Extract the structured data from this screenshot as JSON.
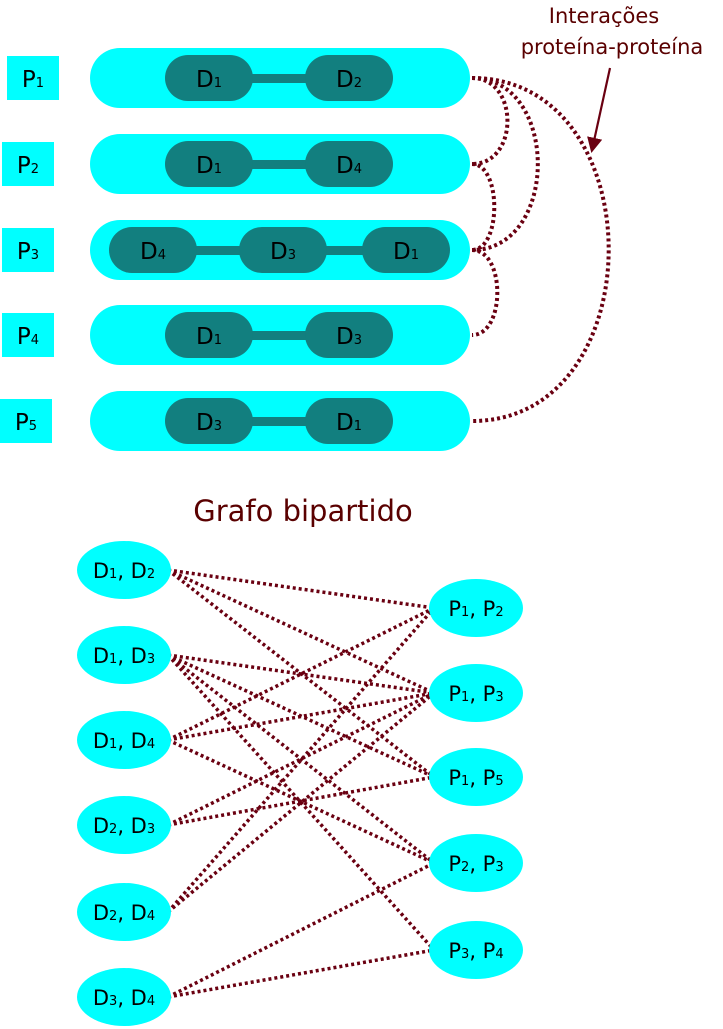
{
  "colors": {
    "protein_bar": "#00ffff",
    "domain": "#127f7f",
    "edge": "#6a0011",
    "text": "#000000",
    "annotation_text": "#5a0000"
  },
  "annotation": {
    "line1": "Interações",
    "line2": "proteína-proteína"
  },
  "proteins": [
    {
      "letter": "P",
      "index": "1",
      "domains": [
        {
          "letter": "D",
          "index": "1"
        },
        {
          "letter": "D",
          "index": "2"
        }
      ]
    },
    {
      "letter": "P",
      "index": "2",
      "domains": [
        {
          "letter": "D",
          "index": "1"
        },
        {
          "letter": "D",
          "index": "4"
        }
      ]
    },
    {
      "letter": "P",
      "index": "3",
      "domains": [
        {
          "letter": "D",
          "index": "4"
        },
        {
          "letter": "D",
          "index": "3"
        },
        {
          "letter": "D",
          "index": "1"
        }
      ]
    },
    {
      "letter": "P",
      "index": "4",
      "domains": [
        {
          "letter": "D",
          "index": "1"
        },
        {
          "letter": "D",
          "index": "3"
        }
      ]
    },
    {
      "letter": "P",
      "index": "5",
      "domains": [
        {
          "letter": "D",
          "index": "3"
        },
        {
          "letter": "D",
          "index": "1"
        }
      ]
    }
  ],
  "interactions": [
    {
      "from": 1,
      "to": 2
    },
    {
      "from": 1,
      "to": 3
    },
    {
      "from": 1,
      "to": 5
    },
    {
      "from": 2,
      "to": 3
    },
    {
      "from": 3,
      "to": 4
    }
  ],
  "bipartite": {
    "title": "Grafo bipartido",
    "domain_pairs": [
      {
        "a": {
          "letter": "D",
          "index": "1"
        },
        "sep": ", ",
        "b": {
          "letter": "D",
          "index": "2"
        }
      },
      {
        "a": {
          "letter": "D",
          "index": "1"
        },
        "sep": ", ",
        "b": {
          "letter": "D",
          "index": "3"
        }
      },
      {
        "a": {
          "letter": "D",
          "index": "1"
        },
        "sep": ", ",
        "b": {
          "letter": "D",
          "index": "4"
        }
      },
      {
        "a": {
          "letter": "D",
          "index": "2"
        },
        "sep": ", ",
        "b": {
          "letter": "D",
          "index": "3"
        }
      },
      {
        "a": {
          "letter": "D",
          "index": "2"
        },
        "sep": ", ",
        "b": {
          "letter": "D",
          "index": "4"
        }
      },
      {
        "a": {
          "letter": "D",
          "index": "3"
        },
        "sep": ", ",
        "b": {
          "letter": "D",
          "index": "4"
        }
      }
    ],
    "protein_pairs": [
      {
        "a": {
          "letter": "P",
          "index": "1"
        },
        "sep": ", ",
        "b": {
          "letter": "P",
          "index": "2"
        }
      },
      {
        "a": {
          "letter": "P",
          "index": "1"
        },
        "sep": ", ",
        "b": {
          "letter": "P",
          "index": "3"
        }
      },
      {
        "a": {
          "letter": "P",
          "index": "1"
        },
        "sep": ", ",
        "b": {
          "letter": "P",
          "index": "5"
        }
      },
      {
        "a": {
          "letter": "P",
          "index": "2"
        },
        "sep": ", ",
        "b": {
          "letter": "P",
          "index": "3"
        }
      },
      {
        "a": {
          "letter": "P",
          "index": "3"
        },
        "sep": ", ",
        "b": {
          "letter": "P",
          "index": "4"
        }
      }
    ],
    "edges": [
      {
        "domain_pair": 0,
        "protein_pair": 0
      },
      {
        "domain_pair": 0,
        "protein_pair": 1
      },
      {
        "domain_pair": 0,
        "protein_pair": 2
      },
      {
        "domain_pair": 1,
        "protein_pair": 1
      },
      {
        "domain_pair": 1,
        "protein_pair": 2
      },
      {
        "domain_pair": 1,
        "protein_pair": 3
      },
      {
        "domain_pair": 1,
        "protein_pair": 4
      },
      {
        "domain_pair": 2,
        "protein_pair": 0
      },
      {
        "domain_pair": 2,
        "protein_pair": 1
      },
      {
        "domain_pair": 2,
        "protein_pair": 3
      },
      {
        "domain_pair": 3,
        "protein_pair": 1
      },
      {
        "domain_pair": 3,
        "protein_pair": 2
      },
      {
        "domain_pair": 4,
        "protein_pair": 0
      },
      {
        "domain_pair": 4,
        "protein_pair": 1
      },
      {
        "domain_pair": 5,
        "protein_pair": 3
      },
      {
        "domain_pair": 5,
        "protein_pair": 4
      }
    ]
  }
}
